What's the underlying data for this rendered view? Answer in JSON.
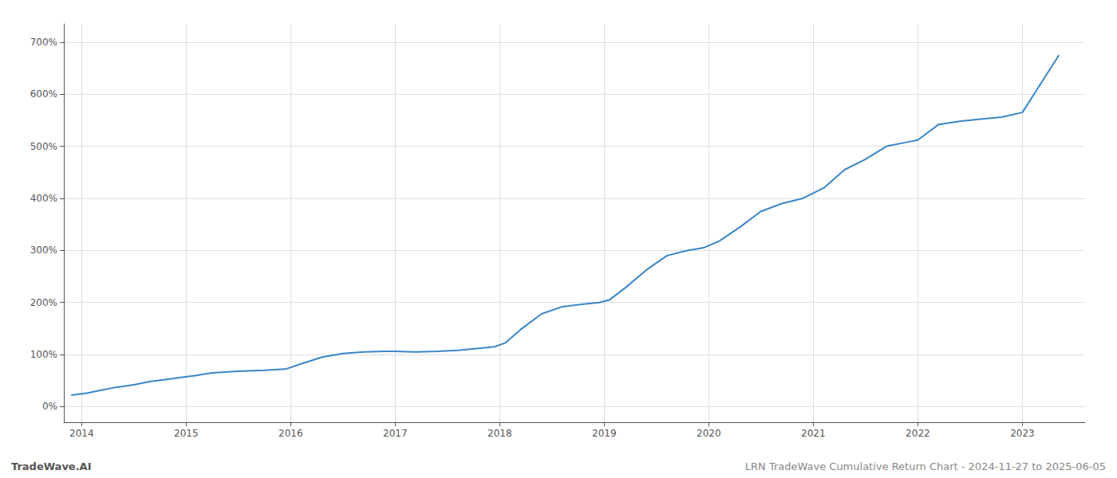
{
  "chart_data": {
    "type": "line",
    "annotations": [
      "TradeWave.AI",
      "LRN TradeWave Cumulative Return Chart - 2024-11-27 to 2025-06-05"
    ],
    "color": "#3a86c8",
    "grid": true,
    "xlim": [
      2013.83,
      2023.6
    ],
    "xticks": [
      2014,
      2015,
      2016,
      2017,
      2018,
      2019,
      2020,
      2021,
      2022,
      2023
    ],
    "ylim": [
      -30,
      735
    ],
    "yticks": [
      {
        "value": 0,
        "label": "0%"
      },
      {
        "value": 100,
        "label": "100%"
      },
      {
        "value": 200,
        "label": "200%"
      },
      {
        "value": 300,
        "label": "300%"
      },
      {
        "value": 400,
        "label": "400%"
      },
      {
        "value": 500,
        "label": "500%"
      },
      {
        "value": 600,
        "label": "600%"
      },
      {
        "value": 700,
        "label": "700%"
      }
    ],
    "x": [
      2013.9,
      2014.05,
      2014.15,
      2014.3,
      2014.5,
      2014.65,
      2014.8,
      2014.95,
      2015.1,
      2015.25,
      2015.5,
      2015.75,
      2015.95,
      2016.1,
      2016.3,
      2016.5,
      2016.7,
      2016.9,
      2017.0,
      2017.2,
      2017.4,
      2017.6,
      2017.8,
      2017.95,
      2018.05,
      2018.2,
      2018.4,
      2018.6,
      2018.8,
      2018.95,
      2019.05,
      2019.2,
      2019.4,
      2019.6,
      2019.8,
      2019.95,
      2020.1,
      2020.3,
      2020.5,
      2020.7,
      2020.9,
      2021.1,
      2021.3,
      2021.5,
      2021.7,
      2021.9,
      2022.0,
      2022.2,
      2022.4,
      2022.6,
      2022.8,
      2023.0,
      2023.2,
      2023.35
    ],
    "values": [
      22,
      26,
      30,
      36,
      42,
      48,
      52,
      56,
      60,
      65,
      68,
      70,
      72,
      82,
      95,
      102,
      105,
      106,
      106,
      105,
      106,
      108,
      112,
      115,
      122,
      148,
      178,
      192,
      197,
      200,
      205,
      228,
      262,
      290,
      300,
      305,
      318,
      345,
      375,
      390,
      400,
      420,
      455,
      475,
      500,
      508,
      512,
      542,
      548,
      552,
      556,
      565,
      628,
      675
    ]
  }
}
